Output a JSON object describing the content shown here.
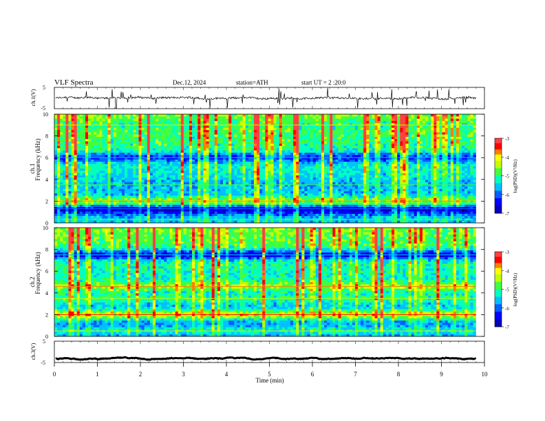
{
  "header": {
    "title": "VLF Spectra",
    "date": "Dec.12, 2024",
    "station": "station=ATH",
    "start": "start UT = 2 :20:0"
  },
  "colors": {
    "colormap": [
      "#000000",
      "#0000a0",
      "#0000ff",
      "#0080ff",
      "#00e0ff",
      "#00ff80",
      "#80ff00",
      "#ffff00",
      "#ff8000",
      "#ff0000",
      "#ffffff"
    ],
    "trace": "#000000"
  },
  "chart_data": [
    {
      "type": "line",
      "ylabel": "ch.1(V)",
      "ylim": [
        -5,
        5
      ],
      "yticks": [
        "5",
        "-5"
      ],
      "xlim": [
        0,
        10
      ],
      "description_values": "noisy trace centred near 0 V with frequent short spikes",
      "mean": 0
    },
    {
      "type": "heatmap",
      "ylabel_top": "ch.1",
      "ylabel": "Frequency (kHz)",
      "ylim": [
        0,
        10
      ],
      "yticks": [
        "0",
        "2",
        "4",
        "6",
        "8",
        "10"
      ],
      "xlim": [
        0,
        9.8
      ],
      "colorbar": {
        "label": "log(PSD)(V²/Hz)",
        "range": [
          -7,
          -3
        ],
        "ticks": [
          "-3",
          "-4",
          "-5",
          "-6",
          "-7"
        ]
      },
      "bands": [
        {
          "freq": 0.3,
          "level": -5.5
        },
        {
          "freq": 1.3,
          "level": -6.8
        },
        {
          "freq": 2.0,
          "level": -4.6
        },
        {
          "freq": 3.5,
          "level": -5.6
        },
        {
          "freq": 6.0,
          "level": -6.2
        },
        {
          "freq": 9.0,
          "level": -5.0
        }
      ]
    },
    {
      "type": "heatmap",
      "ylabel_top": "ch.2",
      "ylabel": "Frequency (kHz)",
      "ylim": [
        0,
        10
      ],
      "yticks": [
        "0",
        "2",
        "4",
        "6",
        "8",
        "10"
      ],
      "xlim": [
        0,
        9.8
      ],
      "colorbar": {
        "label": "log(PSD)(V²/Hz)",
        "range": [
          -7,
          -3
        ],
        "ticks": [
          "-3",
          "-4",
          "-5",
          "-6",
          "-7"
        ]
      },
      "bands": [
        {
          "freq": 0.5,
          "level": -5.3
        },
        {
          "freq": 2.0,
          "level": -4.2
        },
        {
          "freq": 3.5,
          "level": -5.0
        },
        {
          "freq": 4.6,
          "level": -4.5
        },
        {
          "freq": 7.5,
          "level": -6.5
        }
      ]
    },
    {
      "type": "line",
      "ylabel": "ch.3(V)",
      "ylim": [
        -5,
        5
      ],
      "yticks": [
        "5",
        "-5"
      ],
      "xlim": [
        0,
        10
      ],
      "mean": -3.2
    }
  ],
  "xaxis": {
    "label": "Time (min)",
    "ticks": [
      "0",
      "1",
      "2",
      "3",
      "4",
      "5",
      "6",
      "7",
      "8",
      "9",
      "10"
    ],
    "range": [
      0,
      10
    ]
  }
}
